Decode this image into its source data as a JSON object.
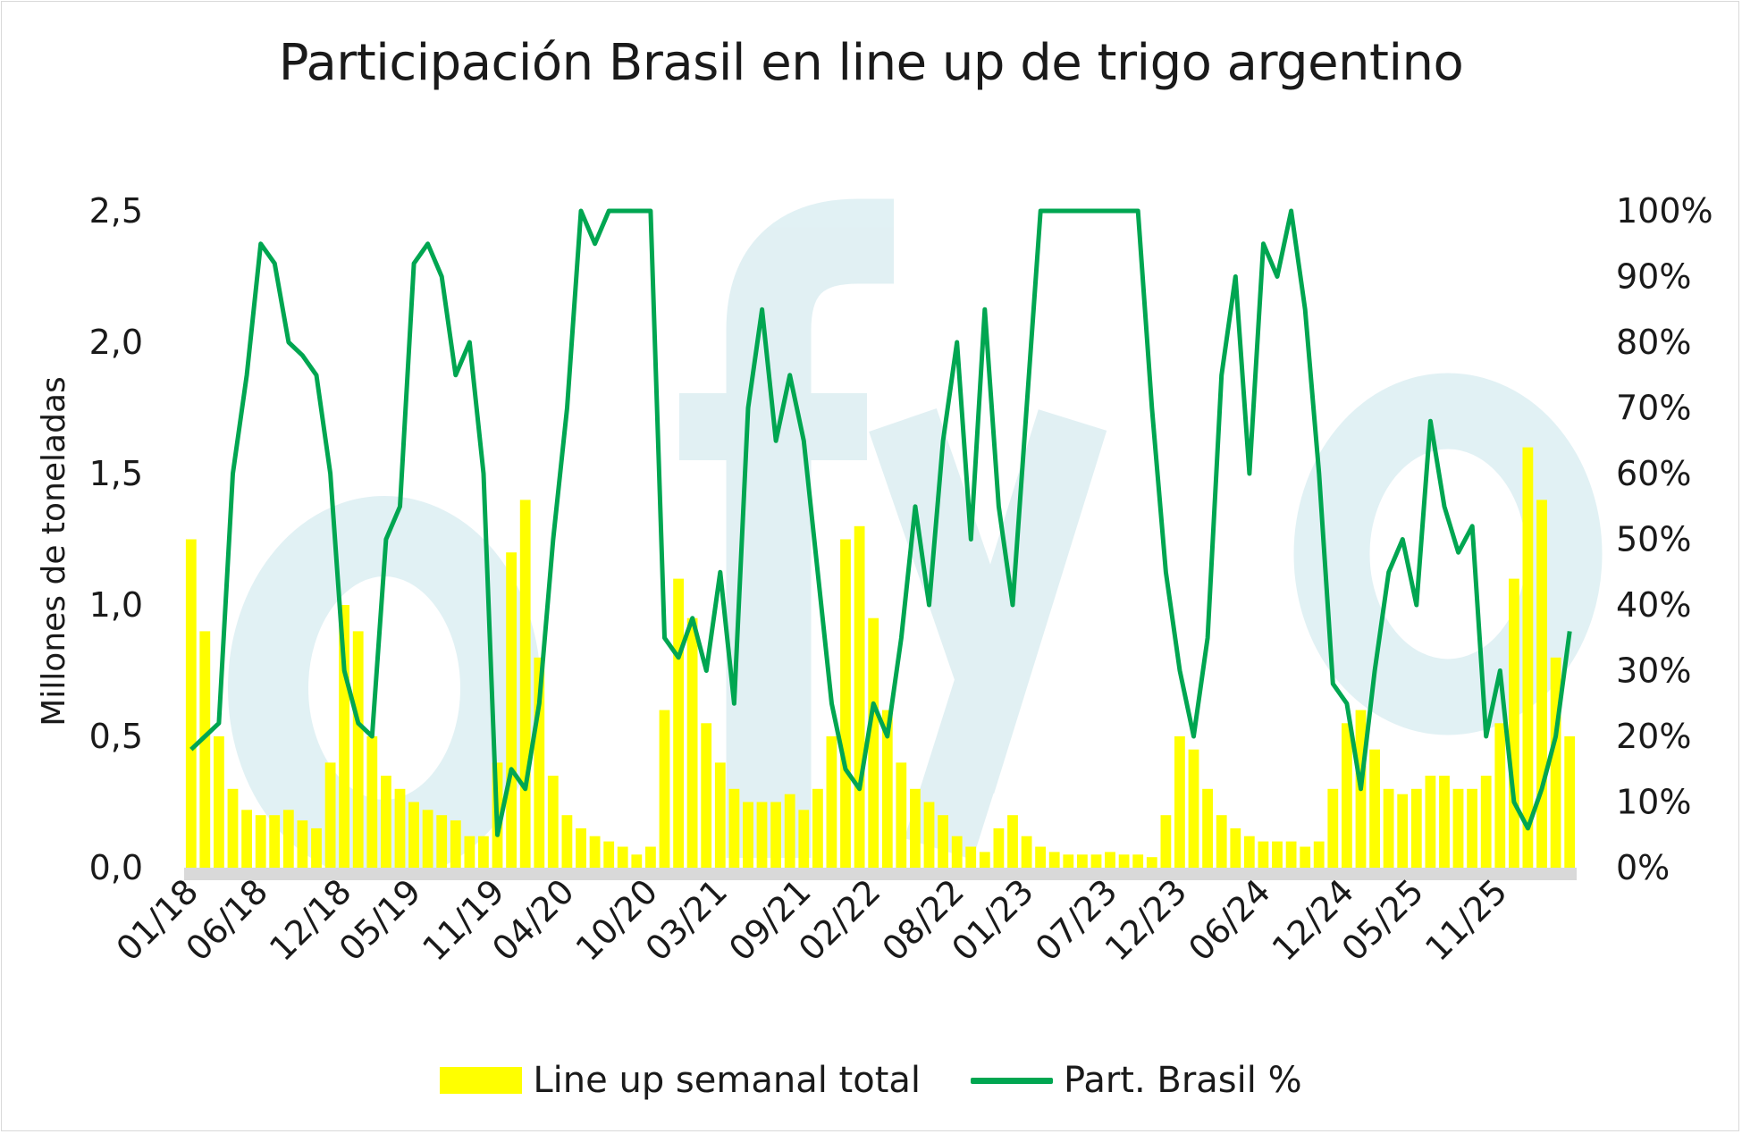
{
  "colors": {
    "bars": "#ffff00",
    "line": "#00a651",
    "watermark": "#d7ecf0"
  },
  "chart_data": {
    "type": "bar+line",
    "title": "Participación Brasil en line up de trigo argentino",
    "ylabel": "Millones de toneladas",
    "y_ticks": [
      "0,0",
      "0,5",
      "1,0",
      "1,5",
      "2,0",
      "2,5"
    ],
    "y_tick_values": [
      0,
      0.5,
      1.0,
      1.5,
      2.0,
      2.5
    ],
    "y2_ticks": [
      "0%",
      "10%",
      "20%",
      "30%",
      "40%",
      "50%",
      "60%",
      "70%",
      "80%",
      "90%",
      "100%"
    ],
    "y2_tick_values": [
      0,
      10,
      20,
      30,
      40,
      50,
      60,
      70,
      80,
      90,
      100
    ],
    "ylim": [
      0,
      2.5
    ],
    "y2lim": [
      0,
      100
    ],
    "x_ticks": [
      "01/18",
      "06/18",
      "12/18",
      "05/19",
      "11/19",
      "04/20",
      "10/20",
      "03/21",
      "09/21",
      "02/22",
      "08/22",
      "01/23",
      "07/23",
      "12/23",
      "06/24",
      "12/24",
      "05/25",
      "11/25"
    ],
    "x_range_months": [
      "01/18",
      "04/26"
    ],
    "legend_position": "bottom",
    "series": [
      {
        "name": "Line up semanal total",
        "kind": "bar",
        "axis": "left",
        "unit": "millones de toneladas (semanal)",
        "monthly": [
          {
            "m": "01/18",
            "v": 1.25
          },
          {
            "m": "02/18",
            "v": 0.9
          },
          {
            "m": "03/18",
            "v": 0.5
          },
          {
            "m": "04/18",
            "v": 0.3
          },
          {
            "m": "05/18",
            "v": 0.22
          },
          {
            "m": "06/18",
            "v": 0.2
          },
          {
            "m": "07/18",
            "v": 0.2
          },
          {
            "m": "08/18",
            "v": 0.22
          },
          {
            "m": "09/18",
            "v": 0.18
          },
          {
            "m": "10/18",
            "v": 0.15
          },
          {
            "m": "11/18",
            "v": 0.4
          },
          {
            "m": "12/18",
            "v": 1.0
          },
          {
            "m": "01/19",
            "v": 0.9
          },
          {
            "m": "02/19",
            "v": 0.5
          },
          {
            "m": "03/19",
            "v": 0.35
          },
          {
            "m": "04/19",
            "v": 0.3
          },
          {
            "m": "05/19",
            "v": 0.25
          },
          {
            "m": "06/19",
            "v": 0.22
          },
          {
            "m": "07/19",
            "v": 0.2
          },
          {
            "m": "08/19",
            "v": 0.18
          },
          {
            "m": "09/19",
            "v": 0.12
          },
          {
            "m": "10/19",
            "v": 0.12
          },
          {
            "m": "11/19",
            "v": 0.4
          },
          {
            "m": "12/19",
            "v": 1.2
          },
          {
            "m": "01/20",
            "v": 1.4
          },
          {
            "m": "02/20",
            "v": 0.8
          },
          {
            "m": "03/20",
            "v": 0.35
          },
          {
            "m": "04/20",
            "v": 0.2
          },
          {
            "m": "05/20",
            "v": 0.15
          },
          {
            "m": "06/20",
            "v": 0.12
          },
          {
            "m": "07/20",
            "v": 0.1
          },
          {
            "m": "08/20",
            "v": 0.08
          },
          {
            "m": "09/20",
            "v": 0.05
          },
          {
            "m": "10/20",
            "v": 0.08
          },
          {
            "m": "11/20",
            "v": 0.6
          },
          {
            "m": "12/20",
            "v": 1.1
          },
          {
            "m": "01/21",
            "v": 0.95
          },
          {
            "m": "02/21",
            "v": 0.55
          },
          {
            "m": "03/21",
            "v": 0.4
          },
          {
            "m": "04/21",
            "v": 0.3
          },
          {
            "m": "05/21",
            "v": 0.25
          },
          {
            "m": "06/21",
            "v": 0.25
          },
          {
            "m": "07/21",
            "v": 0.25
          },
          {
            "m": "08/21",
            "v": 0.28
          },
          {
            "m": "09/21",
            "v": 0.22
          },
          {
            "m": "10/21",
            "v": 0.3
          },
          {
            "m": "11/21",
            "v": 0.5
          },
          {
            "m": "12/21",
            "v": 1.25
          },
          {
            "m": "01/22",
            "v": 1.3
          },
          {
            "m": "02/22",
            "v": 0.95
          },
          {
            "m": "03/22",
            "v": 0.6
          },
          {
            "m": "04/22",
            "v": 0.4
          },
          {
            "m": "05/22",
            "v": 0.3
          },
          {
            "m": "06/22",
            "v": 0.25
          },
          {
            "m": "07/22",
            "v": 0.2
          },
          {
            "m": "08/22",
            "v": 0.12
          },
          {
            "m": "09/22",
            "v": 0.08
          },
          {
            "m": "10/22",
            "v": 0.06
          },
          {
            "m": "11/22",
            "v": 0.15
          },
          {
            "m": "12/22",
            "v": 0.2
          },
          {
            "m": "01/23",
            "v": 0.12
          },
          {
            "m": "02/23",
            "v": 0.08
          },
          {
            "m": "03/23",
            "v": 0.06
          },
          {
            "m": "04/23",
            "v": 0.05
          },
          {
            "m": "05/23",
            "v": 0.05
          },
          {
            "m": "06/23",
            "v": 0.05
          },
          {
            "m": "07/23",
            "v": 0.06
          },
          {
            "m": "08/23",
            "v": 0.05
          },
          {
            "m": "09/23",
            "v": 0.05
          },
          {
            "m": "10/23",
            "v": 0.04
          },
          {
            "m": "11/23",
            "v": 0.2
          },
          {
            "m": "12/23",
            "v": 0.5
          },
          {
            "m": "01/24",
            "v": 0.45
          },
          {
            "m": "02/24",
            "v": 0.3
          },
          {
            "m": "03/24",
            "v": 0.2
          },
          {
            "m": "04/24",
            "v": 0.15
          },
          {
            "m": "05/24",
            "v": 0.12
          },
          {
            "m": "06/24",
            "v": 0.1
          },
          {
            "m": "07/24",
            "v": 0.1
          },
          {
            "m": "08/24",
            "v": 0.1
          },
          {
            "m": "09/24",
            "v": 0.08
          },
          {
            "m": "10/24",
            "v": 0.1
          },
          {
            "m": "11/24",
            "v": 0.3
          },
          {
            "m": "12/24",
            "v": 0.55
          },
          {
            "m": "01/25",
            "v": 0.6
          },
          {
            "m": "02/25",
            "v": 0.45
          },
          {
            "m": "03/25",
            "v": 0.3
          },
          {
            "m": "04/25",
            "v": 0.28
          },
          {
            "m": "05/25",
            "v": 0.3
          },
          {
            "m": "06/25",
            "v": 0.35
          },
          {
            "m": "07/25",
            "v": 0.35
          },
          {
            "m": "08/25",
            "v": 0.3
          },
          {
            "m": "09/25",
            "v": 0.3
          },
          {
            "m": "10/25",
            "v": 0.35
          },
          {
            "m": "11/25",
            "v": 0.55
          },
          {
            "m": "12/25",
            "v": 1.1
          },
          {
            "m": "01/26",
            "v": 1.6
          },
          {
            "m": "02/26",
            "v": 1.4
          },
          {
            "m": "03/26",
            "v": 0.8
          },
          {
            "m": "04/26",
            "v": 0.5
          }
        ]
      },
      {
        "name": "Part. Brasil %",
        "kind": "line",
        "axis": "right",
        "unit": "%",
        "monthly": [
          {
            "m": "01/18",
            "v": 18
          },
          {
            "m": "02/18",
            "v": 20
          },
          {
            "m": "03/18",
            "v": 22
          },
          {
            "m": "04/18",
            "v": 60
          },
          {
            "m": "05/18",
            "v": 75
          },
          {
            "m": "06/18",
            "v": 95
          },
          {
            "m": "07/18",
            "v": 92
          },
          {
            "m": "08/18",
            "v": 80
          },
          {
            "m": "09/18",
            "v": 78
          },
          {
            "m": "10/18",
            "v": 75
          },
          {
            "m": "11/18",
            "v": 60
          },
          {
            "m": "12/18",
            "v": 30
          },
          {
            "m": "01/19",
            "v": 22
          },
          {
            "m": "02/19",
            "v": 20
          },
          {
            "m": "03/19",
            "v": 50
          },
          {
            "m": "04/19",
            "v": 55
          },
          {
            "m": "05/19",
            "v": 92
          },
          {
            "m": "06/19",
            "v": 95
          },
          {
            "m": "07/19",
            "v": 90
          },
          {
            "m": "08/19",
            "v": 75
          },
          {
            "m": "09/19",
            "v": 80
          },
          {
            "m": "10/19",
            "v": 60
          },
          {
            "m": "11/19",
            "v": 5
          },
          {
            "m": "12/19",
            "v": 15
          },
          {
            "m": "01/20",
            "v": 12
          },
          {
            "m": "02/20",
            "v": 25
          },
          {
            "m": "03/20",
            "v": 50
          },
          {
            "m": "04/20",
            "v": 70
          },
          {
            "m": "05/20",
            "v": 100
          },
          {
            "m": "06/20",
            "v": 95
          },
          {
            "m": "07/20",
            "v": 100
          },
          {
            "m": "08/20",
            "v": 100
          },
          {
            "m": "09/20",
            "v": 100
          },
          {
            "m": "10/20",
            "v": 100
          },
          {
            "m": "11/20",
            "v": 35
          },
          {
            "m": "12/20",
            "v": 32
          },
          {
            "m": "01/21",
            "v": 38
          },
          {
            "m": "02/21",
            "v": 30
          },
          {
            "m": "03/21",
            "v": 45
          },
          {
            "m": "04/21",
            "v": 25
          },
          {
            "m": "05/21",
            "v": 70
          },
          {
            "m": "06/21",
            "v": 85
          },
          {
            "m": "07/21",
            "v": 65
          },
          {
            "m": "08/21",
            "v": 75
          },
          {
            "m": "09/21",
            "v": 65
          },
          {
            "m": "10/21",
            "v": 45
          },
          {
            "m": "11/21",
            "v": 25
          },
          {
            "m": "12/21",
            "v": 15
          },
          {
            "m": "01/22",
            "v": 12
          },
          {
            "m": "02/22",
            "v": 25
          },
          {
            "m": "03/22",
            "v": 20
          },
          {
            "m": "04/22",
            "v": 35
          },
          {
            "m": "05/22",
            "v": 55
          },
          {
            "m": "06/22",
            "v": 40
          },
          {
            "m": "07/22",
            "v": 65
          },
          {
            "m": "08/22",
            "v": 80
          },
          {
            "m": "09/22",
            "v": 50
          },
          {
            "m": "10/22",
            "v": 85
          },
          {
            "m": "11/22",
            "v": 55
          },
          {
            "m": "12/22",
            "v": 40
          },
          {
            "m": "01/23",
            "v": 70
          },
          {
            "m": "02/23",
            "v": 100
          },
          {
            "m": "03/23",
            "v": 100
          },
          {
            "m": "04/23",
            "v": 100
          },
          {
            "m": "05/23",
            "v": 100
          },
          {
            "m": "06/23",
            "v": 100
          },
          {
            "m": "07/23",
            "v": 100
          },
          {
            "m": "08/23",
            "v": 100
          },
          {
            "m": "09/23",
            "v": 100
          },
          {
            "m": "10/23",
            "v": 70
          },
          {
            "m": "11/23",
            "v": 45
          },
          {
            "m": "12/23",
            "v": 30
          },
          {
            "m": "01/24",
            "v": 20
          },
          {
            "m": "02/24",
            "v": 35
          },
          {
            "m": "03/24",
            "v": 75
          },
          {
            "m": "04/24",
            "v": 90
          },
          {
            "m": "05/24",
            "v": 60
          },
          {
            "m": "06/24",
            "v": 95
          },
          {
            "m": "07/24",
            "v": 90
          },
          {
            "m": "08/24",
            "v": 100
          },
          {
            "m": "09/24",
            "v": 85
          },
          {
            "m": "10/24",
            "v": 60
          },
          {
            "m": "11/24",
            "v": 28
          },
          {
            "m": "12/24",
            "v": 25
          },
          {
            "m": "01/25",
            "v": 12
          },
          {
            "m": "02/25",
            "v": 30
          },
          {
            "m": "03/25",
            "v": 45
          },
          {
            "m": "04/25",
            "v": 50
          },
          {
            "m": "05/25",
            "v": 40
          },
          {
            "m": "06/25",
            "v": 68
          },
          {
            "m": "07/25",
            "v": 55
          },
          {
            "m": "08/25",
            "v": 48
          },
          {
            "m": "09/25",
            "v": 52
          },
          {
            "m": "10/25",
            "v": 20
          },
          {
            "m": "11/25",
            "v": 30
          },
          {
            "m": "12/25",
            "v": 10
          },
          {
            "m": "01/26",
            "v": 6
          },
          {
            "m": "02/26",
            "v": 12
          },
          {
            "m": "03/26",
            "v": 20
          },
          {
            "m": "04/26",
            "v": 36
          }
        ]
      }
    ]
  }
}
